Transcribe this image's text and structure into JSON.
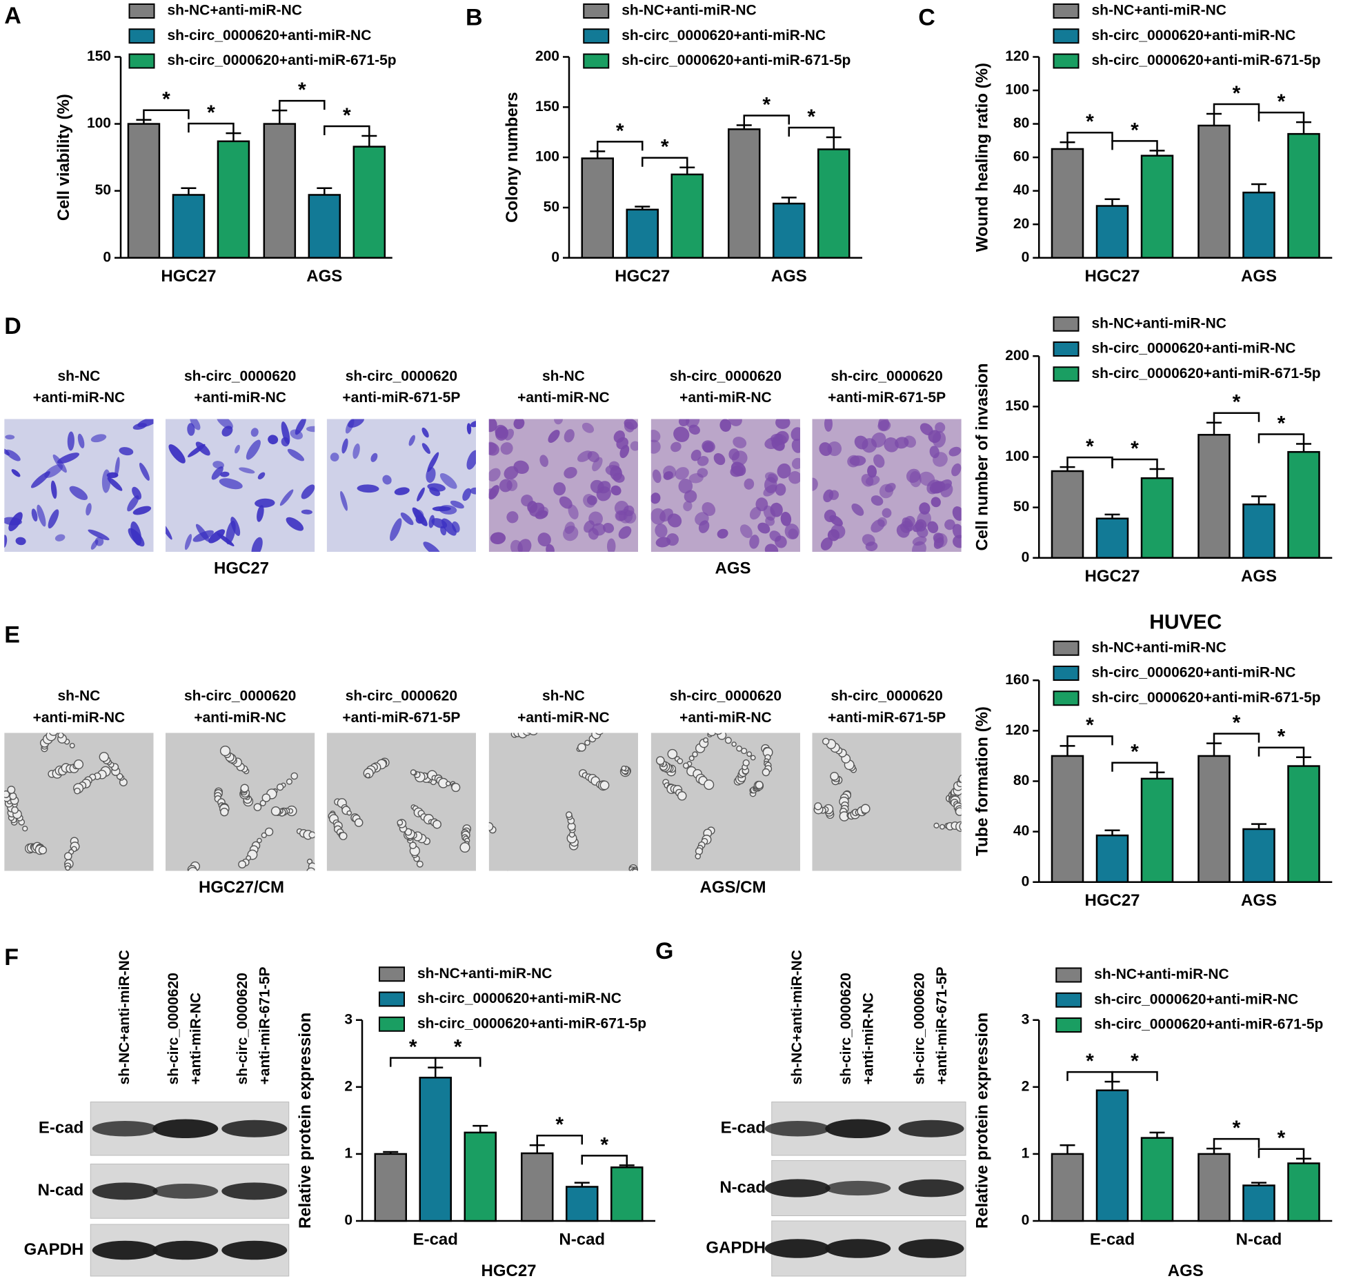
{
  "chart_data": [
    {
      "type": "bar",
      "panel": "A",
      "ylabel": "Cell viability (%)",
      "categories": [
        "HGC27",
        "AGS"
      ],
      "series": [
        {
          "name": "sh-NC+anti-miR-NC",
          "color": "#7f7f7f",
          "values": [
            100,
            100
          ],
          "errors": [
            3,
            10
          ]
        },
        {
          "name": "sh-circ_0000620+anti-miR-NC",
          "color": "#127a96",
          "values": [
            47,
            47
          ],
          "errors": [
            5,
            5
          ]
        },
        {
          "name": "sh-circ_0000620+anti-miR-671-5p",
          "color": "#1a9e62",
          "values": [
            87,
            83
          ],
          "errors": [
            6,
            8
          ]
        }
      ],
      "ylim": [
        0,
        150
      ],
      "yticks": [
        0,
        50,
        100,
        150
      ],
      "significance": "*"
    },
    {
      "type": "bar",
      "panel": "B",
      "ylabel": "Colony numbers",
      "categories": [
        "HGC27",
        "AGS"
      ],
      "series": [
        {
          "name": "sh-NC+anti-miR-NC",
          "color": "#7f7f7f",
          "values": [
            99,
            128
          ],
          "errors": [
            7,
            4
          ]
        },
        {
          "name": "sh-circ_0000620+anti-miR-NC",
          "color": "#127a96",
          "values": [
            48,
            54
          ],
          "errors": [
            3,
            6
          ]
        },
        {
          "name": "sh-circ_0000620+anti-miR-671-5p",
          "color": "#1a9e62",
          "values": [
            83,
            108
          ],
          "errors": [
            7,
            12
          ]
        }
      ],
      "ylim": [
        0,
        200
      ],
      "yticks": [
        0,
        50,
        100,
        150,
        200
      ],
      "significance": "*"
    },
    {
      "type": "bar",
      "panel": "C",
      "ylabel": "Wound healing ratio (%)",
      "categories": [
        "HGC27",
        "AGS"
      ],
      "series": [
        {
          "name": "sh-NC+anti-miR-NC",
          "color": "#7f7f7f",
          "values": [
            65,
            79
          ],
          "errors": [
            4,
            7
          ]
        },
        {
          "name": "sh-circ_0000620+anti-miR-NC",
          "color": "#127a96",
          "values": [
            31,
            39
          ],
          "errors": [
            4,
            5
          ]
        },
        {
          "name": "sh-circ_0000620+anti-miR-671-5p",
          "color": "#1a9e62",
          "values": [
            61,
            74
          ],
          "errors": [
            3,
            7
          ]
        }
      ],
      "ylim": [
        0,
        120
      ],
      "yticks": [
        0,
        20,
        40,
        60,
        80,
        100,
        120
      ],
      "significance": "*"
    },
    {
      "type": "bar",
      "ylabel": "Cell number of invasion",
      "categories": [
        "HGC27",
        "AGS"
      ],
      "series": [
        {
          "name": "sh-NC+anti-miR-NC",
          "color": "#7f7f7f",
          "values": [
            86,
            122
          ],
          "errors": [
            4,
            12
          ]
        },
        {
          "name": "sh-circ_0000620+anti-miR-NC",
          "color": "#127a96",
          "values": [
            39,
            53
          ],
          "errors": [
            4,
            8
          ]
        },
        {
          "name": "sh-circ_0000620+anti-miR-671-5p",
          "color": "#1a9e62",
          "values": [
            79,
            105
          ],
          "errors": [
            9,
            8
          ]
        }
      ],
      "ylim": [
        0,
        200
      ],
      "yticks": [
        0,
        50,
        100,
        150,
        200
      ],
      "significance": "*"
    },
    {
      "type": "bar",
      "title": "HUVEC",
      "ylabel": "Tube formation (%)",
      "categories": [
        "HGC27",
        "AGS"
      ],
      "series": [
        {
          "name": "sh-NC+anti-miR-NC",
          "color": "#7f7f7f",
          "values": [
            100,
            100
          ],
          "errors": [
            8,
            10
          ]
        },
        {
          "name": "sh-circ_0000620+anti-miR-NC",
          "color": "#127a96",
          "values": [
            37,
            42
          ],
          "errors": [
            4,
            4
          ]
        },
        {
          "name": "sh-circ_0000620+anti-miR-671-5p",
          "color": "#1a9e62",
          "values": [
            82,
            92
          ],
          "errors": [
            5,
            7
          ]
        }
      ],
      "ylim": [
        0,
        160
      ],
      "yticks": [
        0,
        40,
        80,
        120,
        160
      ],
      "significance": "*"
    },
    {
      "type": "bar",
      "xlabel": "HGC27",
      "ylabel": "Relative protein expression",
      "categories": [
        "E-cad",
        "N-cad"
      ],
      "series": [
        {
          "name": "sh-NC+anti-miR-NC",
          "color": "#7f7f7f",
          "values": [
            1.0,
            1.01
          ],
          "errors": [
            0.03,
            0.12
          ]
        },
        {
          "name": "sh-circ_0000620+anti-miR-NC",
          "color": "#127a96",
          "values": [
            2.14,
            0.51
          ],
          "errors": [
            0.15,
            0.06
          ]
        },
        {
          "name": "sh-circ_0000620+anti-miR-671-5p",
          "color": "#1a9e62",
          "values": [
            1.32,
            0.8
          ],
          "errors": [
            0.1,
            0.03
          ]
        }
      ],
      "ylim": [
        0,
        3
      ],
      "yticks": [
        0,
        1,
        2,
        3
      ],
      "significance": "*"
    },
    {
      "type": "bar",
      "xlabel": "AGS",
      "ylabel": "Relative protein expression",
      "categories": [
        "E-cad",
        "N-cad"
      ],
      "series": [
        {
          "name": "sh-NC+anti-miR-NC",
          "color": "#7f7f7f",
          "values": [
            1.0,
            1.0
          ],
          "errors": [
            0.13,
            0.08
          ]
        },
        {
          "name": "sh-circ_0000620+anti-miR-NC",
          "color": "#127a96",
          "values": [
            1.95,
            0.53
          ],
          "errors": [
            0.13,
            0.04
          ]
        },
        {
          "name": "sh-circ_0000620+anti-miR-671-5p",
          "color": "#1a9e62",
          "values": [
            1.24,
            0.86
          ],
          "errors": [
            0.08,
            0.07
          ]
        }
      ],
      "ylim": [
        0,
        3
      ],
      "yticks": [
        0,
        1,
        2,
        3
      ],
      "significance": "*"
    }
  ],
  "micrographs": [
    {
      "panel": "D",
      "labels": [
        [
          "sh-NC",
          "+anti-miR-NC"
        ],
        [
          "sh-circ_0000620",
          "+anti-miR-NC"
        ],
        [
          "sh-circ_0000620",
          "+anti-miR-671-5P"
        ],
        [
          "sh-NC",
          "+anti-miR-NC"
        ],
        [
          "sh-circ_0000620",
          "+anti-miR-NC"
        ],
        [
          "sh-circ_0000620",
          "+anti-miR-671-5P"
        ]
      ],
      "groups": [
        "HGC27",
        "AGS"
      ]
    },
    {
      "panel": "E",
      "labels": [
        [
          "sh-NC",
          "+anti-miR-NC"
        ],
        [
          "sh-circ_0000620",
          "+anti-miR-NC"
        ],
        [
          "sh-circ_0000620",
          "+anti-miR-671-5P"
        ],
        [
          "sh-NC",
          "+anti-miR-NC"
        ],
        [
          "sh-circ_0000620",
          "+anti-miR-NC"
        ],
        [
          "sh-circ_0000620",
          "+anti-miR-671-5P"
        ]
      ],
      "groups": [
        "HGC27/CM",
        "AGS/CM"
      ]
    }
  ],
  "blots": [
    {
      "panel": "F",
      "lanes": [
        [
          "sh-NC+anti-miR-NC"
        ],
        [
          "sh-circ_0000620",
          "+anti-miR-NC"
        ],
        [
          "sh-circ_0000620",
          "+anti-miR-671-5P"
        ]
      ],
      "rows": [
        "E-cad",
        "N-cad",
        "GAPDH"
      ]
    },
    {
      "panel": "G",
      "lanes": [
        [
          "sh-NC+anti-miR-NC"
        ],
        [
          "sh-circ_0000620",
          "+anti-miR-NC"
        ],
        [
          "sh-circ_0000620",
          "+anti-miR-671-5P"
        ]
      ],
      "rows": [
        "E-cad",
        "N-cad",
        "GAPDH"
      ]
    }
  ]
}
